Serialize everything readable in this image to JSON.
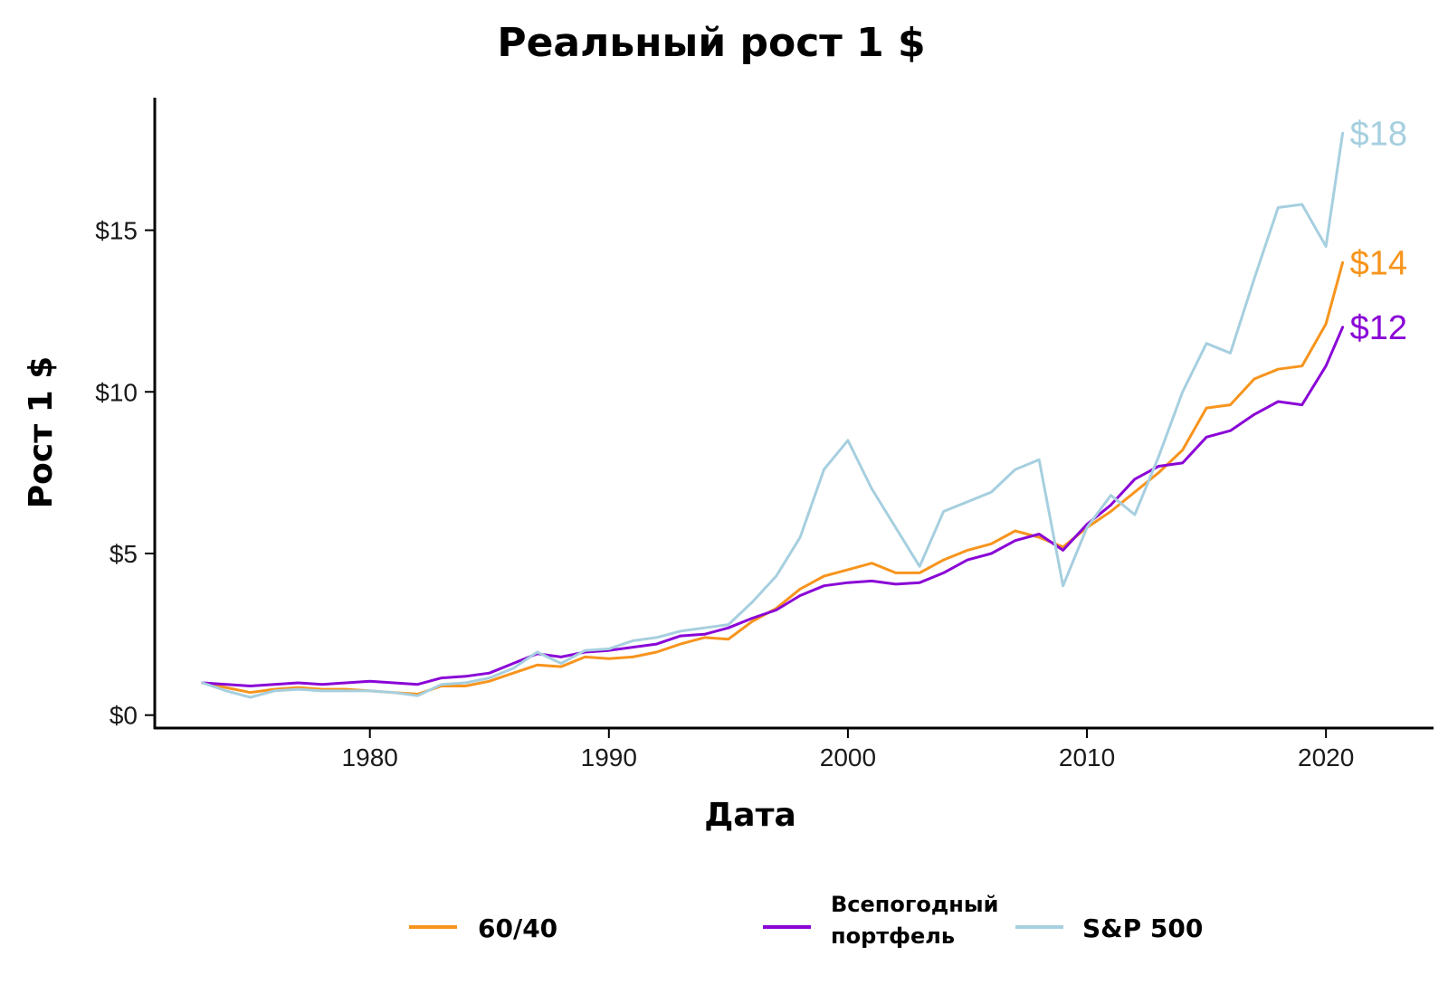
{
  "chart_data": {
    "type": "line",
    "title": "Реальный рост 1 $",
    "xlabel": "Дата",
    "ylabel": "Рост 1 $",
    "xlim": [
      1971,
      2024.5
    ],
    "ylim": [
      -0.4,
      19.1
    ],
    "x_ticks": [
      1980,
      1990,
      2000,
      2010,
      2020
    ],
    "x_tick_labels": [
      "1980",
      "1990",
      "2000",
      "2010",
      "2020"
    ],
    "y_ticks": [
      0,
      5,
      10,
      15
    ],
    "y_tick_labels": [
      "$0",
      "$5",
      "$10",
      "$15"
    ],
    "grid": false,
    "legend_position": "bottom",
    "series": [
      {
        "name": "60/40",
        "color": "#F7941D",
        "end_label": "$14",
        "end_value": 14,
        "x": [
          1973,
          1974,
          1975,
          1976,
          1977,
          1978,
          1979,
          1980,
          1981,
          1982,
          1983,
          1984,
          1985,
          1986,
          1987,
          1988,
          1989,
          1990,
          1991,
          1992,
          1993,
          1994,
          1995,
          1996,
          1997,
          1998,
          1999,
          2000,
          2001,
          2002,
          2003,
          2004,
          2005,
          2006,
          2007,
          2008,
          2009,
          2010,
          2011,
          2012,
          2013,
          2014,
          2015,
          2016,
          2017,
          2018,
          2019,
          2020,
          2020.7
        ],
        "y": [
          1.0,
          0.85,
          0.7,
          0.8,
          0.85,
          0.8,
          0.8,
          0.75,
          0.7,
          0.65,
          0.9,
          0.9,
          1.05,
          1.3,
          1.55,
          1.5,
          1.8,
          1.75,
          1.8,
          1.95,
          2.2,
          2.4,
          2.35,
          2.9,
          3.3,
          3.9,
          4.3,
          4.5,
          4.7,
          4.4,
          4.4,
          4.8,
          5.1,
          5.3,
          5.7,
          5.5,
          5.2,
          5.8,
          6.3,
          6.9,
          7.5,
          8.2,
          9.5,
          9.6,
          10.4,
          10.7,
          10.8,
          12.1,
          14.0
        ]
      },
      {
        "name": "Всепогодный портфель",
        "label_lines": [
          "Всепогодный",
          "портфель"
        ],
        "color": "#8A05D6",
        "end_label": "$12",
        "end_value": 12,
        "x": [
          1973,
          1974,
          1975,
          1976,
          1977,
          1978,
          1979,
          1980,
          1981,
          1982,
          1983,
          1984,
          1985,
          1986,
          1987,
          1988,
          1989,
          1990,
          1991,
          1992,
          1993,
          1994,
          1995,
          1996,
          1997,
          1998,
          1999,
          2000,
          2001,
          2002,
          2003,
          2004,
          2005,
          2006,
          2007,
          2008,
          2009,
          2010,
          2011,
          2012,
          2013,
          2014,
          2015,
          2016,
          2017,
          2018,
          2019,
          2020,
          2020.7
        ],
        "y": [
          1.0,
          0.95,
          0.9,
          0.95,
          1.0,
          0.95,
          1.0,
          1.05,
          1.0,
          0.95,
          1.15,
          1.2,
          1.3,
          1.6,
          1.9,
          1.8,
          1.95,
          2.0,
          2.1,
          2.2,
          2.45,
          2.5,
          2.7,
          3.0,
          3.25,
          3.7,
          4.0,
          4.1,
          4.15,
          4.05,
          4.1,
          4.4,
          4.8,
          5.0,
          5.4,
          5.6,
          5.1,
          5.9,
          6.5,
          7.3,
          7.7,
          7.8,
          8.6,
          8.8,
          9.3,
          9.7,
          9.6,
          10.8,
          12.0
        ]
      },
      {
        "name": "S&P 500",
        "color": "#A6CFDF",
        "end_label": "$18",
        "end_value": 18,
        "x": [
          1973,
          1974,
          1975,
          1976,
          1977,
          1978,
          1979,
          1980,
          1981,
          1982,
          1983,
          1984,
          1985,
          1986,
          1987,
          1988,
          1989,
          1990,
          1991,
          1992,
          1993,
          1994,
          1995,
          1996,
          1997,
          1998,
          1999,
          2000,
          2001,
          2002,
          2003,
          2004,
          2005,
          2006,
          2007,
          2008,
          2009,
          2010,
          2011,
          2012,
          2013,
          2014,
          2015,
          2016,
          2017,
          2018,
          2019,
          2020,
          2020.7
        ],
        "y": [
          1.0,
          0.75,
          0.55,
          0.75,
          0.8,
          0.75,
          0.75,
          0.75,
          0.7,
          0.6,
          0.95,
          1.0,
          1.15,
          1.45,
          1.95,
          1.6,
          2.0,
          2.05,
          2.3,
          2.4,
          2.6,
          2.7,
          2.8,
          3.5,
          4.3,
          5.5,
          7.6,
          8.5,
          7.0,
          5.8,
          4.6,
          6.3,
          6.6,
          6.9,
          7.6,
          7.9,
          4.0,
          5.8,
          6.8,
          6.2,
          8.0,
          10.0,
          11.5,
          11.2,
          13.5,
          15.7,
          15.8,
          14.5,
          18.0
        ]
      }
    ]
  }
}
